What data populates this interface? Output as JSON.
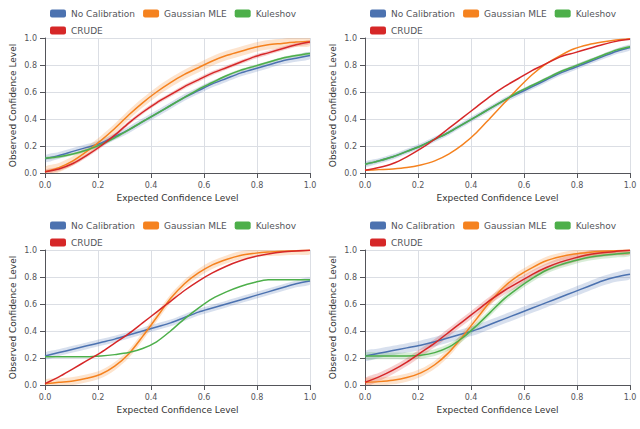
{
  "chart_data": [
    {
      "type": "line",
      "xlabel": "Expected Confidence Level",
      "ylabel": "Observed Confidence Level",
      "x": [
        0,
        0.05263157894736842,
        0.10526315789473684,
        0.15789473684210525,
        0.21052631578947367,
        0.2631578947368421,
        0.3157894736842105,
        0.3684210526315789,
        0.42105263157894735,
        0.47368421052631576,
        0.5263157894736842,
        0.5789473684210527,
        0.631578947368421,
        0.6842105263157894,
        0.7368421052631579,
        0.7894736842105263,
        0.8421052631578947,
        0.894736842105263,
        0.9473684210526315,
        1
      ],
      "xlim": [
        0,
        1
      ],
      "ylim": [
        0,
        1
      ],
      "xticks": [
        {
          "value": 0,
          "label": "0.0"
        },
        0.2,
        0.4,
        0.6,
        0.8,
        {
          "value": 1,
          "label": "1.0"
        }
      ],
      "yticks": [
        {
          "value": 0,
          "label": "0.0"
        },
        0.2,
        0.4,
        0.6,
        0.8,
        {
          "value": 1,
          "label": "1.0"
        }
      ],
      "grid": true,
      "legend": "upper left",
      "series": [
        {
          "name": "No Calibration",
          "color": "#4c72b0",
          "std": 0.025,
          "values": [
            0.105,
            0.13,
            0.16,
            0.19,
            0.22,
            0.27,
            0.32,
            0.38,
            0.44,
            0.5,
            0.56,
            0.61,
            0.66,
            0.7,
            0.74,
            0.77,
            0.8,
            0.83,
            0.85,
            0.87
          ]
        },
        {
          "name": "Gaussian MLE",
          "color": "#f5821f",
          "std": 0.035,
          "values": [
            0.01,
            0.04,
            0.09,
            0.16,
            0.24,
            0.33,
            0.43,
            0.52,
            0.6,
            0.67,
            0.73,
            0.78,
            0.83,
            0.87,
            0.9,
            0.93,
            0.95,
            0.96,
            0.97,
            0.975
          ]
        },
        {
          "name": "Kuleshov",
          "color": "#4daf4a",
          "std": 0.01,
          "values": [
            0.11,
            0.12,
            0.14,
            0.17,
            0.21,
            0.26,
            0.32,
            0.38,
            0.44,
            0.5,
            0.56,
            0.62,
            0.67,
            0.72,
            0.76,
            0.79,
            0.82,
            0.85,
            0.87,
            0.885
          ]
        },
        {
          "name": "CRUDE",
          "color": "#d62728",
          "std": 0.015,
          "values": [
            0.01,
            0.03,
            0.07,
            0.13,
            0.2,
            0.28,
            0.37,
            0.45,
            0.52,
            0.58,
            0.64,
            0.69,
            0.74,
            0.78,
            0.82,
            0.86,
            0.89,
            0.92,
            0.95,
            0.97
          ]
        }
      ]
    },
    {
      "type": "line",
      "xlabel": "Expected Confidence Level",
      "ylabel": "Observed Confidence Level",
      "x": [
        0,
        0.05263157894736842,
        0.10526315789473684,
        0.15789473684210525,
        0.21052631578947367,
        0.2631578947368421,
        0.3157894736842105,
        0.3684210526315789,
        0.42105263157894735,
        0.47368421052631576,
        0.5263157894736842,
        0.5789473684210527,
        0.631578947368421,
        0.6842105263157894,
        0.7368421052631579,
        0.7894736842105263,
        0.8421052631578947,
        0.894736842105263,
        0.9473684210526315,
        1
      ],
      "xlim": [
        0,
        1
      ],
      "ylim": [
        0,
        1
      ],
      "xticks": [
        {
          "value": 0,
          "label": "0.0"
        },
        0.2,
        0.4,
        0.6,
        0.8,
        {
          "value": 1,
          "label": "1.0"
        }
      ],
      "yticks": [
        {
          "value": 0,
          "label": "0.0"
        },
        0.2,
        0.4,
        0.6,
        0.8,
        {
          "value": 1,
          "label": "1.0"
        }
      ],
      "grid": true,
      "legend": "upper left",
      "series": [
        {
          "name": "No Calibration",
          "color": "#4c72b0",
          "std": 0.02,
          "values": [
            0.065,
            0.09,
            0.12,
            0.16,
            0.2,
            0.25,
            0.3,
            0.36,
            0.42,
            0.48,
            0.54,
            0.59,
            0.64,
            0.69,
            0.74,
            0.78,
            0.82,
            0.86,
            0.9,
            0.93
          ]
        },
        {
          "name": "Gaussian MLE",
          "color": "#f5821f",
          "std": 0.0,
          "values": [
            0.02,
            0.025,
            0.03,
            0.04,
            0.06,
            0.09,
            0.14,
            0.21,
            0.3,
            0.41,
            0.52,
            0.63,
            0.73,
            0.81,
            0.87,
            0.92,
            0.95,
            0.97,
            0.985,
            0.995
          ]
        },
        {
          "name": "Kuleshov",
          "color": "#4daf4a",
          "std": 0.01,
          "values": [
            0.065,
            0.09,
            0.12,
            0.16,
            0.2,
            0.25,
            0.3,
            0.36,
            0.42,
            0.48,
            0.54,
            0.6,
            0.65,
            0.7,
            0.75,
            0.79,
            0.83,
            0.87,
            0.91,
            0.935
          ]
        },
        {
          "name": "CRUDE",
          "color": "#d62728",
          "std": 0.0,
          "values": [
            0.02,
            0.04,
            0.07,
            0.12,
            0.18,
            0.25,
            0.33,
            0.41,
            0.49,
            0.57,
            0.64,
            0.7,
            0.76,
            0.81,
            0.86,
            0.89,
            0.92,
            0.95,
            0.975,
            0.99
          ]
        }
      ]
    },
    {
      "type": "line",
      "xlabel": "Expected Confidence Level",
      "ylabel": "Observed Confidence Level",
      "x": [
        0,
        0.05263157894736842,
        0.10526315789473684,
        0.15789473684210525,
        0.21052631578947367,
        0.2631578947368421,
        0.3157894736842105,
        0.3684210526315789,
        0.42105263157894735,
        0.47368421052631576,
        0.5263157894736842,
        0.5789473684210527,
        0.631578947368421,
        0.6842105263157894,
        0.7368421052631579,
        0.7894736842105263,
        0.8421052631578947,
        0.894736842105263,
        0.9473684210526315,
        1
      ],
      "xlim": [
        0,
        1
      ],
      "ylim": [
        0,
        1
      ],
      "xticks": [
        {
          "value": 0,
          "label": "0.0"
        },
        0.2,
        0.4,
        0.6,
        0.8,
        {
          "value": 1,
          "label": "1.0"
        }
      ],
      "yticks": [
        {
          "value": 0,
          "label": "0.0"
        },
        0.2,
        0.4,
        0.6,
        0.8,
        {
          "value": 1,
          "label": "1.0"
        }
      ],
      "grid": true,
      "legend": "upper left",
      "series": [
        {
          "name": "No Calibration",
          "color": "#4c72b0",
          "std": 0.025,
          "values": [
            0.215,
            0.24,
            0.265,
            0.29,
            0.315,
            0.34,
            0.37,
            0.4,
            0.43,
            0.46,
            0.5,
            0.54,
            0.57,
            0.6,
            0.63,
            0.66,
            0.69,
            0.72,
            0.75,
            0.77
          ]
        },
        {
          "name": "Gaussian MLE",
          "color": "#f5821f",
          "std": 0.03,
          "values": [
            0.01,
            0.02,
            0.03,
            0.05,
            0.08,
            0.14,
            0.23,
            0.36,
            0.5,
            0.64,
            0.75,
            0.83,
            0.89,
            0.93,
            0.96,
            0.975,
            0.985,
            0.99,
            0.995,
            0.998
          ]
        },
        {
          "name": "Kuleshov",
          "color": "#4daf4a",
          "std": 0.0,
          "values": [
            0.21,
            0.21,
            0.21,
            0.21,
            0.215,
            0.225,
            0.24,
            0.27,
            0.32,
            0.4,
            0.49,
            0.57,
            0.64,
            0.69,
            0.73,
            0.76,
            0.78,
            0.78,
            0.78,
            0.78
          ]
        },
        {
          "name": "CRUDE",
          "color": "#d62728",
          "std": 0.0,
          "values": [
            0.01,
            0.06,
            0.12,
            0.18,
            0.24,
            0.31,
            0.38,
            0.46,
            0.54,
            0.62,
            0.7,
            0.77,
            0.83,
            0.88,
            0.92,
            0.95,
            0.97,
            0.985,
            0.993,
            0.998
          ]
        }
      ]
    },
    {
      "type": "line",
      "xlabel": "Expected Confidence Level",
      "ylabel": "Observed Confidence Level",
      "x": [
        0,
        0.05263157894736842,
        0.10526315789473684,
        0.15789473684210525,
        0.21052631578947367,
        0.2631578947368421,
        0.3157894736842105,
        0.3684210526315789,
        0.42105263157894735,
        0.47368421052631576,
        0.5263157894736842,
        0.5789473684210527,
        0.631578947368421,
        0.6842105263157894,
        0.7368421052631579,
        0.7894736842105263,
        0.8421052631578947,
        0.894736842105263,
        0.9473684210526315,
        1
      ],
      "xlim": [
        0,
        1
      ],
      "ylim": [
        0,
        1
      ],
      "xticks": [
        {
          "value": 0,
          "label": "0.0"
        },
        0.2,
        0.4,
        0.6,
        0.8,
        {
          "value": 1,
          "label": "1.0"
        }
      ],
      "yticks": [
        {
          "value": 0,
          "label": "0.0"
        },
        0.2,
        0.4,
        0.6,
        0.8,
        {
          "value": 1,
          "label": "1.0"
        }
      ],
      "grid": true,
      "legend": "upper left",
      "series": [
        {
          "name": "No Calibration",
          "color": "#4c72b0",
          "std": 0.035,
          "values": [
            0.215,
            0.235,
            0.255,
            0.275,
            0.295,
            0.32,
            0.35,
            0.38,
            0.41,
            0.45,
            0.49,
            0.53,
            0.57,
            0.61,
            0.65,
            0.69,
            0.73,
            0.77,
            0.8,
            0.82
          ]
        },
        {
          "name": "Gaussian MLE",
          "color": "#f5821f",
          "std": 0.03,
          "values": [
            0.02,
            0.025,
            0.035,
            0.055,
            0.09,
            0.15,
            0.24,
            0.36,
            0.49,
            0.62,
            0.73,
            0.81,
            0.87,
            0.92,
            0.95,
            0.97,
            0.982,
            0.99,
            0.995,
            0.998
          ]
        },
        {
          "name": "Kuleshov",
          "color": "#4daf4a",
          "std": 0.025,
          "values": [
            0.215,
            0.215,
            0.215,
            0.215,
            0.22,
            0.24,
            0.28,
            0.35,
            0.44,
            0.54,
            0.64,
            0.72,
            0.79,
            0.85,
            0.89,
            0.92,
            0.945,
            0.96,
            0.97,
            0.98
          ]
        },
        {
          "name": "CRUDE",
          "color": "#d62728",
          "std": 0.03,
          "values": [
            0.02,
            0.06,
            0.11,
            0.17,
            0.24,
            0.31,
            0.39,
            0.47,
            0.55,
            0.63,
            0.7,
            0.76,
            0.82,
            0.87,
            0.91,
            0.94,
            0.965,
            0.98,
            0.99,
            0.998
          ]
        }
      ]
    }
  ]
}
